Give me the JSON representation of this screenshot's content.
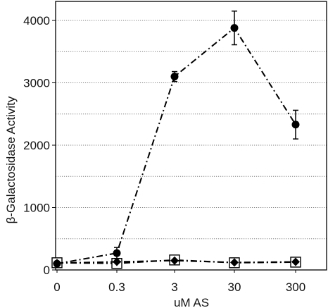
{
  "chart_data": {
    "type": "line",
    "title": "",
    "xlabel": "uM AS",
    "ylabel": "β-Galactosidase Activity",
    "x_scale": "categorical",
    "categories": [
      "0",
      "0.3",
      "3",
      "30",
      "300"
    ],
    "ylim": [
      0,
      4200
    ],
    "yticks": [
      0,
      1000,
      2000,
      3000,
      4000
    ],
    "ytick_labels": [
      "0",
      "1000",
      "2000",
      "3000",
      "4000"
    ],
    "grid": {
      "horizontal": true,
      "step": 500,
      "style": "dotted"
    },
    "legend": "none",
    "series": [
      {
        "marker": "circle",
        "line_style": "dash-dot",
        "values": [
          100,
          270,
          3100,
          3880,
          2330
        ],
        "error": [
          null,
          90,
          80,
          270,
          230
        ]
      },
      {
        "marker": "diamond",
        "line_style": "dash-dot",
        "values": [
          110,
          130,
          150,
          120,
          130
        ],
        "error": [
          null,
          null,
          null,
          null,
          null
        ]
      },
      {
        "marker": "open-square",
        "line_style": "dash-dot",
        "values": [
          115,
          105,
          160,
          115,
          125
        ],
        "error": [
          null,
          null,
          null,
          null,
          null
        ]
      }
    ]
  },
  "colors": {
    "series": "#000000",
    "grid": "#808080",
    "frame": "#000000"
  }
}
